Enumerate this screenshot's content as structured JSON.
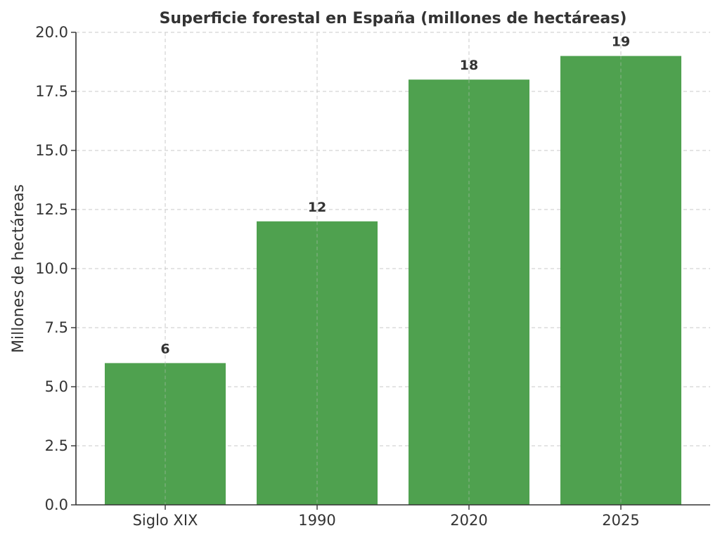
{
  "chart_data": {
    "type": "bar",
    "title": "Superficie forestal en España (millones de hectáreas)",
    "xlabel": "",
    "ylabel": "Millones de hectáreas",
    "categories": [
      "Siglo XIX",
      "1990",
      "2020",
      "2025"
    ],
    "values": [
      6,
      12,
      18,
      19
    ],
    "value_labels": [
      "6",
      "12",
      "18",
      "19"
    ],
    "ylim": [
      0,
      20
    ],
    "yticks": [
      0,
      2.5,
      5,
      7.5,
      10,
      12.5,
      15,
      17.5,
      20
    ],
    "ytick_labels": [
      "0.0",
      "2.5",
      "5.0",
      "7.5",
      "10.0",
      "12.5",
      "15.0",
      "17.5",
      "20.0"
    ],
    "bar_color": "#4fa14f",
    "grid": true,
    "legend": "none"
  }
}
